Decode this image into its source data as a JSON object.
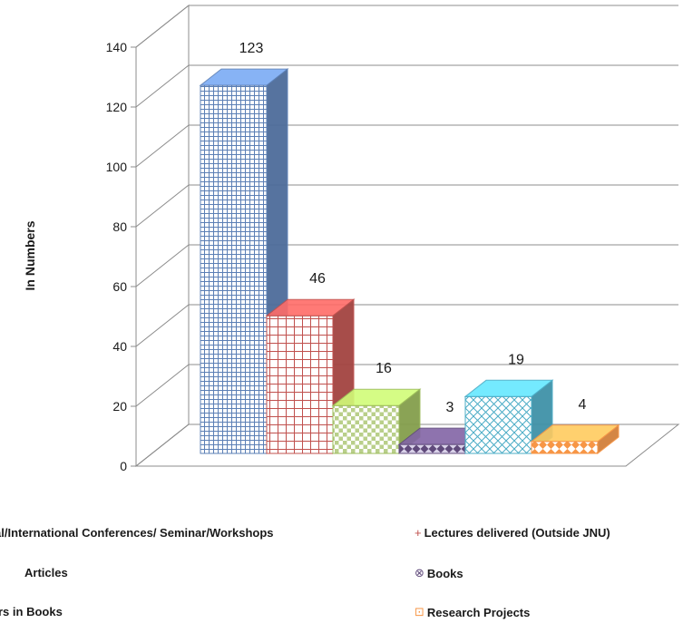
{
  "chart_data": {
    "type": "bar",
    "style": "3d-clustered-column",
    "ylabel": "In Numbers",
    "ylim": [
      0,
      140
    ],
    "yticks": [
      0,
      20,
      40,
      60,
      80,
      100,
      120,
      140
    ],
    "grid": true,
    "legend_position": "bottom",
    "series": [
      {
        "name": "al/International Conferences/ Seminar/Workshops",
        "value": 123,
        "color": "#5b7fb5",
        "legend_marker": ""
      },
      {
        "name": "Lectures delivered (Outside JNU)",
        "value": 46,
        "color": "#c0504d",
        "legend_marker": "+"
      },
      {
        "name": "Articles",
        "value": 16,
        "color": "#9bbb59",
        "legend_marker": ""
      },
      {
        "name": "Books",
        "value": 3,
        "color": "#604a7b",
        "legend_marker": "⊗"
      },
      {
        "name": "rs in Books",
        "value": 19,
        "color": "#4bacc6",
        "legend_marker": ""
      },
      {
        "name": "Research Projects",
        "value": 4,
        "color": "#f79646",
        "legend_marker": "⊡"
      }
    ],
    "data_labels": [
      "123",
      "46",
      "16",
      "3",
      "19",
      "4"
    ]
  }
}
